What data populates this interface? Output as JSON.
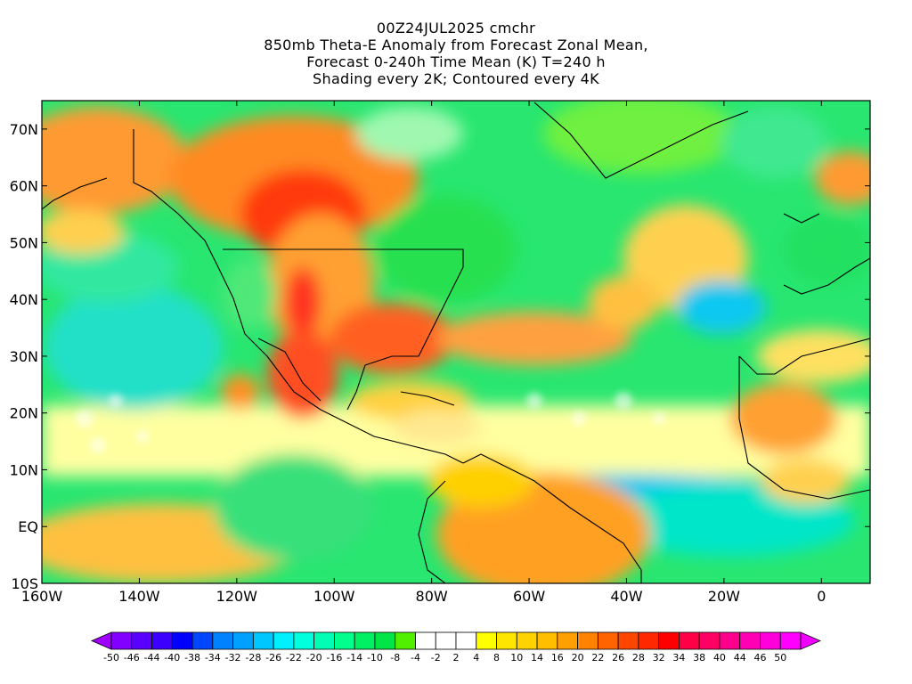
{
  "title": {
    "lines": [
      "00Z24JUL2025 cmchr",
      "850mb Theta-E Anomaly from Forecast Zonal Mean,",
      "Forecast 0-240h Time Mean (K) T=240 h",
      "Shading every 2K; Contoured every 4K"
    ]
  },
  "map": {
    "lon_range": [
      -160,
      10
    ],
    "lat_range": [
      -10,
      75
    ],
    "lon_ticks": [
      {
        "value": -160,
        "label": "160W"
      },
      {
        "value": -140,
        "label": "140W"
      },
      {
        "value": -120,
        "label": "120W"
      },
      {
        "value": -100,
        "label": "100W"
      },
      {
        "value": -80,
        "label": "80W"
      },
      {
        "value": -60,
        "label": "60W"
      },
      {
        "value": -40,
        "label": "40W"
      },
      {
        "value": -20,
        "label": "20W"
      },
      {
        "value": 0,
        "label": "0"
      }
    ],
    "lat_ticks": [
      {
        "value": 70,
        "label": "70N"
      },
      {
        "value": 60,
        "label": "60N"
      },
      {
        "value": 50,
        "label": "50N"
      },
      {
        "value": 40,
        "label": "40N"
      },
      {
        "value": 30,
        "label": "30N"
      },
      {
        "value": 20,
        "label": "20N"
      },
      {
        "value": 10,
        "label": "10N"
      },
      {
        "value": 0,
        "label": "EQ"
      },
      {
        "value": -10,
        "label": "10S"
      }
    ]
  },
  "colorbar": {
    "colors": [
      "#a000ff",
      "#8200ff",
      "#5a00ff",
      "#3c00ff",
      "#0000ff",
      "#0046ff",
      "#0082ff",
      "#00a0ff",
      "#00c8ff",
      "#00f0ff",
      "#00ffdc",
      "#00ffb4",
      "#00ff8c",
      "#00f064",
      "#00e646",
      "#50f000",
      "#ffffff",
      "#ffffff",
      "#ffffff",
      "#ffff00",
      "#ffe600",
      "#ffd200",
      "#ffbe00",
      "#ffa000",
      "#ff8200",
      "#ff6400",
      "#ff4600",
      "#ff2800",
      "#ff0000",
      "#ff0046",
      "#ff0064",
      "#ff008c",
      "#ff00b4",
      "#ff00dc",
      "#ff00ff",
      "#f000ff"
    ],
    "labels": [
      "-50",
      "-46",
      "-44",
      "-40",
      "-38",
      "-34",
      "-32",
      "-28",
      "-26",
      "-22",
      "-20",
      "-16",
      "-14",
      "-10",
      "-8",
      "-4",
      "-2",
      "2",
      "4",
      "8",
      "10",
      "14",
      "16",
      "20",
      "22",
      "26",
      "28",
      "32",
      "34",
      "38",
      "40",
      "44",
      "46",
      "50"
    ]
  }
}
